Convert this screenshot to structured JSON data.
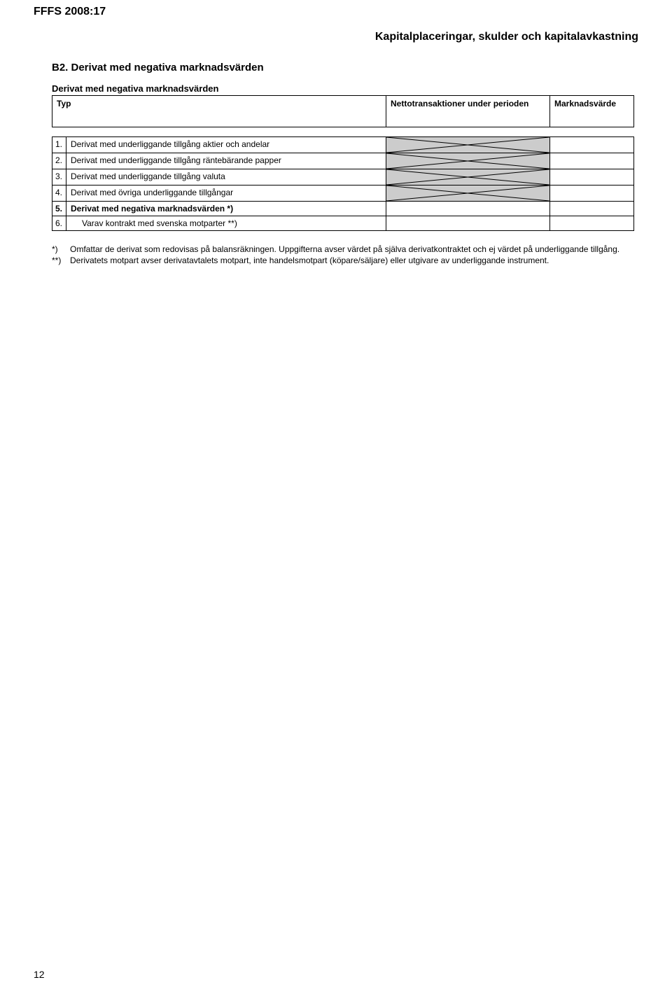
{
  "doc_ref": "FFFS 2008:17",
  "doc_title": "Kapitalplaceringar, skulder och kapitalavkastning",
  "section_heading": "B2. Derivat med negativa marknadsvärden",
  "subheading": "Derivat med negativa marknadsvärden",
  "columns": {
    "typ": "Typ",
    "col1": "Nettotransaktioner under perioden",
    "col2": "Marknadsvärde"
  },
  "rows": [
    {
      "num": "1.",
      "label": "Derivat med underliggande tillgång aktier och andelar",
      "hatched": true,
      "bold": false,
      "indent": false
    },
    {
      "num": "2.",
      "label": "Derivat med underliggande tillgång räntebärande papper",
      "hatched": true,
      "bold": false,
      "indent": false
    },
    {
      "num": "3.",
      "label": "Derivat med underliggande tillgång valuta",
      "hatched": true,
      "bold": false,
      "indent": false
    },
    {
      "num": "4.",
      "label": "Derivat med övriga underliggande tillgångar",
      "hatched": true,
      "bold": false,
      "indent": false
    },
    {
      "num": "5.",
      "label": "Derivat med negativa marknadsvärden *)",
      "hatched": false,
      "bold": true,
      "indent": false
    },
    {
      "num": "6.",
      "label": "Varav kontrakt med svenska motparter **)",
      "hatched": false,
      "bold": false,
      "indent": true
    }
  ],
  "footnotes": [
    {
      "marker": "*)",
      "text": "Omfattar de derivat som redovisas på balansräkningen. Uppgifterna avser värdet på själva derivatkontraktet och ej värdet på underliggande tillgång."
    },
    {
      "marker": "**)",
      "text": "Derivatets motpart avser derivatavtalets motpart, inte handelsmotpart (köpare/säljare) eller utgivare av underliggande instrument."
    }
  ],
  "page_number": "12",
  "style": {
    "hatched_bg": "#cccccc",
    "hatched_line": "#000000",
    "border_color": "#000000",
    "font_family": "Arial"
  }
}
